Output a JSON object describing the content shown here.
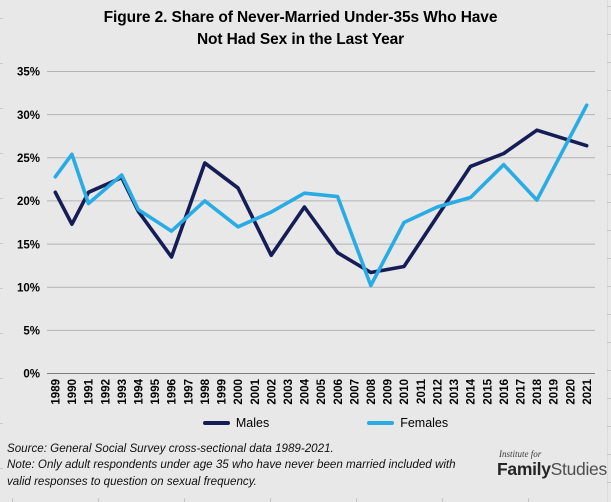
{
  "title": {
    "line1": "Figure 2. Share of Never-Married Under-35s Who Have",
    "line2": "Not Had Sex in the Last Year"
  },
  "chart_data": {
    "type": "line",
    "x_axis_categories": [
      "1989",
      "1990",
      "1991",
      "1992",
      "1993",
      "1994",
      "1995",
      "1996",
      "1997",
      "1998",
      "1999",
      "2000",
      "2001",
      "2002",
      "2003",
      "2004",
      "2005",
      "2006",
      "2007",
      "2008",
      "2009",
      "2010",
      "2011",
      "2012",
      "2013",
      "2014",
      "2015",
      "2016",
      "2017",
      "2018",
      "2019",
      "2020",
      "2021"
    ],
    "survey_years": [
      1989,
      1990,
      1991,
      1993,
      1994,
      1996,
      1998,
      2000,
      2002,
      2004,
      2006,
      2008,
      2010,
      2012,
      2014,
      2016,
      2018,
      2021
    ],
    "series": [
      {
        "name": "Males",
        "color": "#161d56",
        "values": [
          21.0,
          17.3,
          21.0,
          22.7,
          18.8,
          13.5,
          24.4,
          21.5,
          13.7,
          19.3,
          14.0,
          11.7,
          12.4,
          18.2,
          24.0,
          25.5,
          28.2,
          26.4
        ]
      },
      {
        "name": "Females",
        "color": "#29ace4",
        "values": [
          22.8,
          25.4,
          19.7,
          23.0,
          19.0,
          16.5,
          20.0,
          17.0,
          18.7,
          20.9,
          20.5,
          10.2,
          17.5,
          19.3,
          20.4,
          24.2,
          20.1,
          31.1
        ]
      }
    ],
    "yticks": [
      0,
      5,
      10,
      15,
      20,
      25,
      30,
      35
    ],
    "ytick_labels": [
      "0%",
      "5%",
      "10%",
      "15%",
      "20%",
      "25%",
      "30%",
      "35%"
    ],
    "ylim": [
      0,
      35
    ],
    "grid": true,
    "legend_position": "bottom"
  },
  "legend": {
    "males_label": "Males",
    "females_label": "Females"
  },
  "notes": {
    "source": "Source: General Social Survey cross-sectional data 1989-2021.",
    "note": "Note: Only adult respondents under age 35 who have never been married included with valid responses to question on sexual frequency."
  },
  "logo": {
    "top": "Institute for",
    "brand_bold": "Family",
    "brand_light": "Studies"
  },
  "colors": {
    "background": "#e8e8e8",
    "gridline": "#b3b3b3",
    "axis": "#7f7f7f",
    "males": "#161d56",
    "females": "#29ace4",
    "text": "#000000"
  }
}
